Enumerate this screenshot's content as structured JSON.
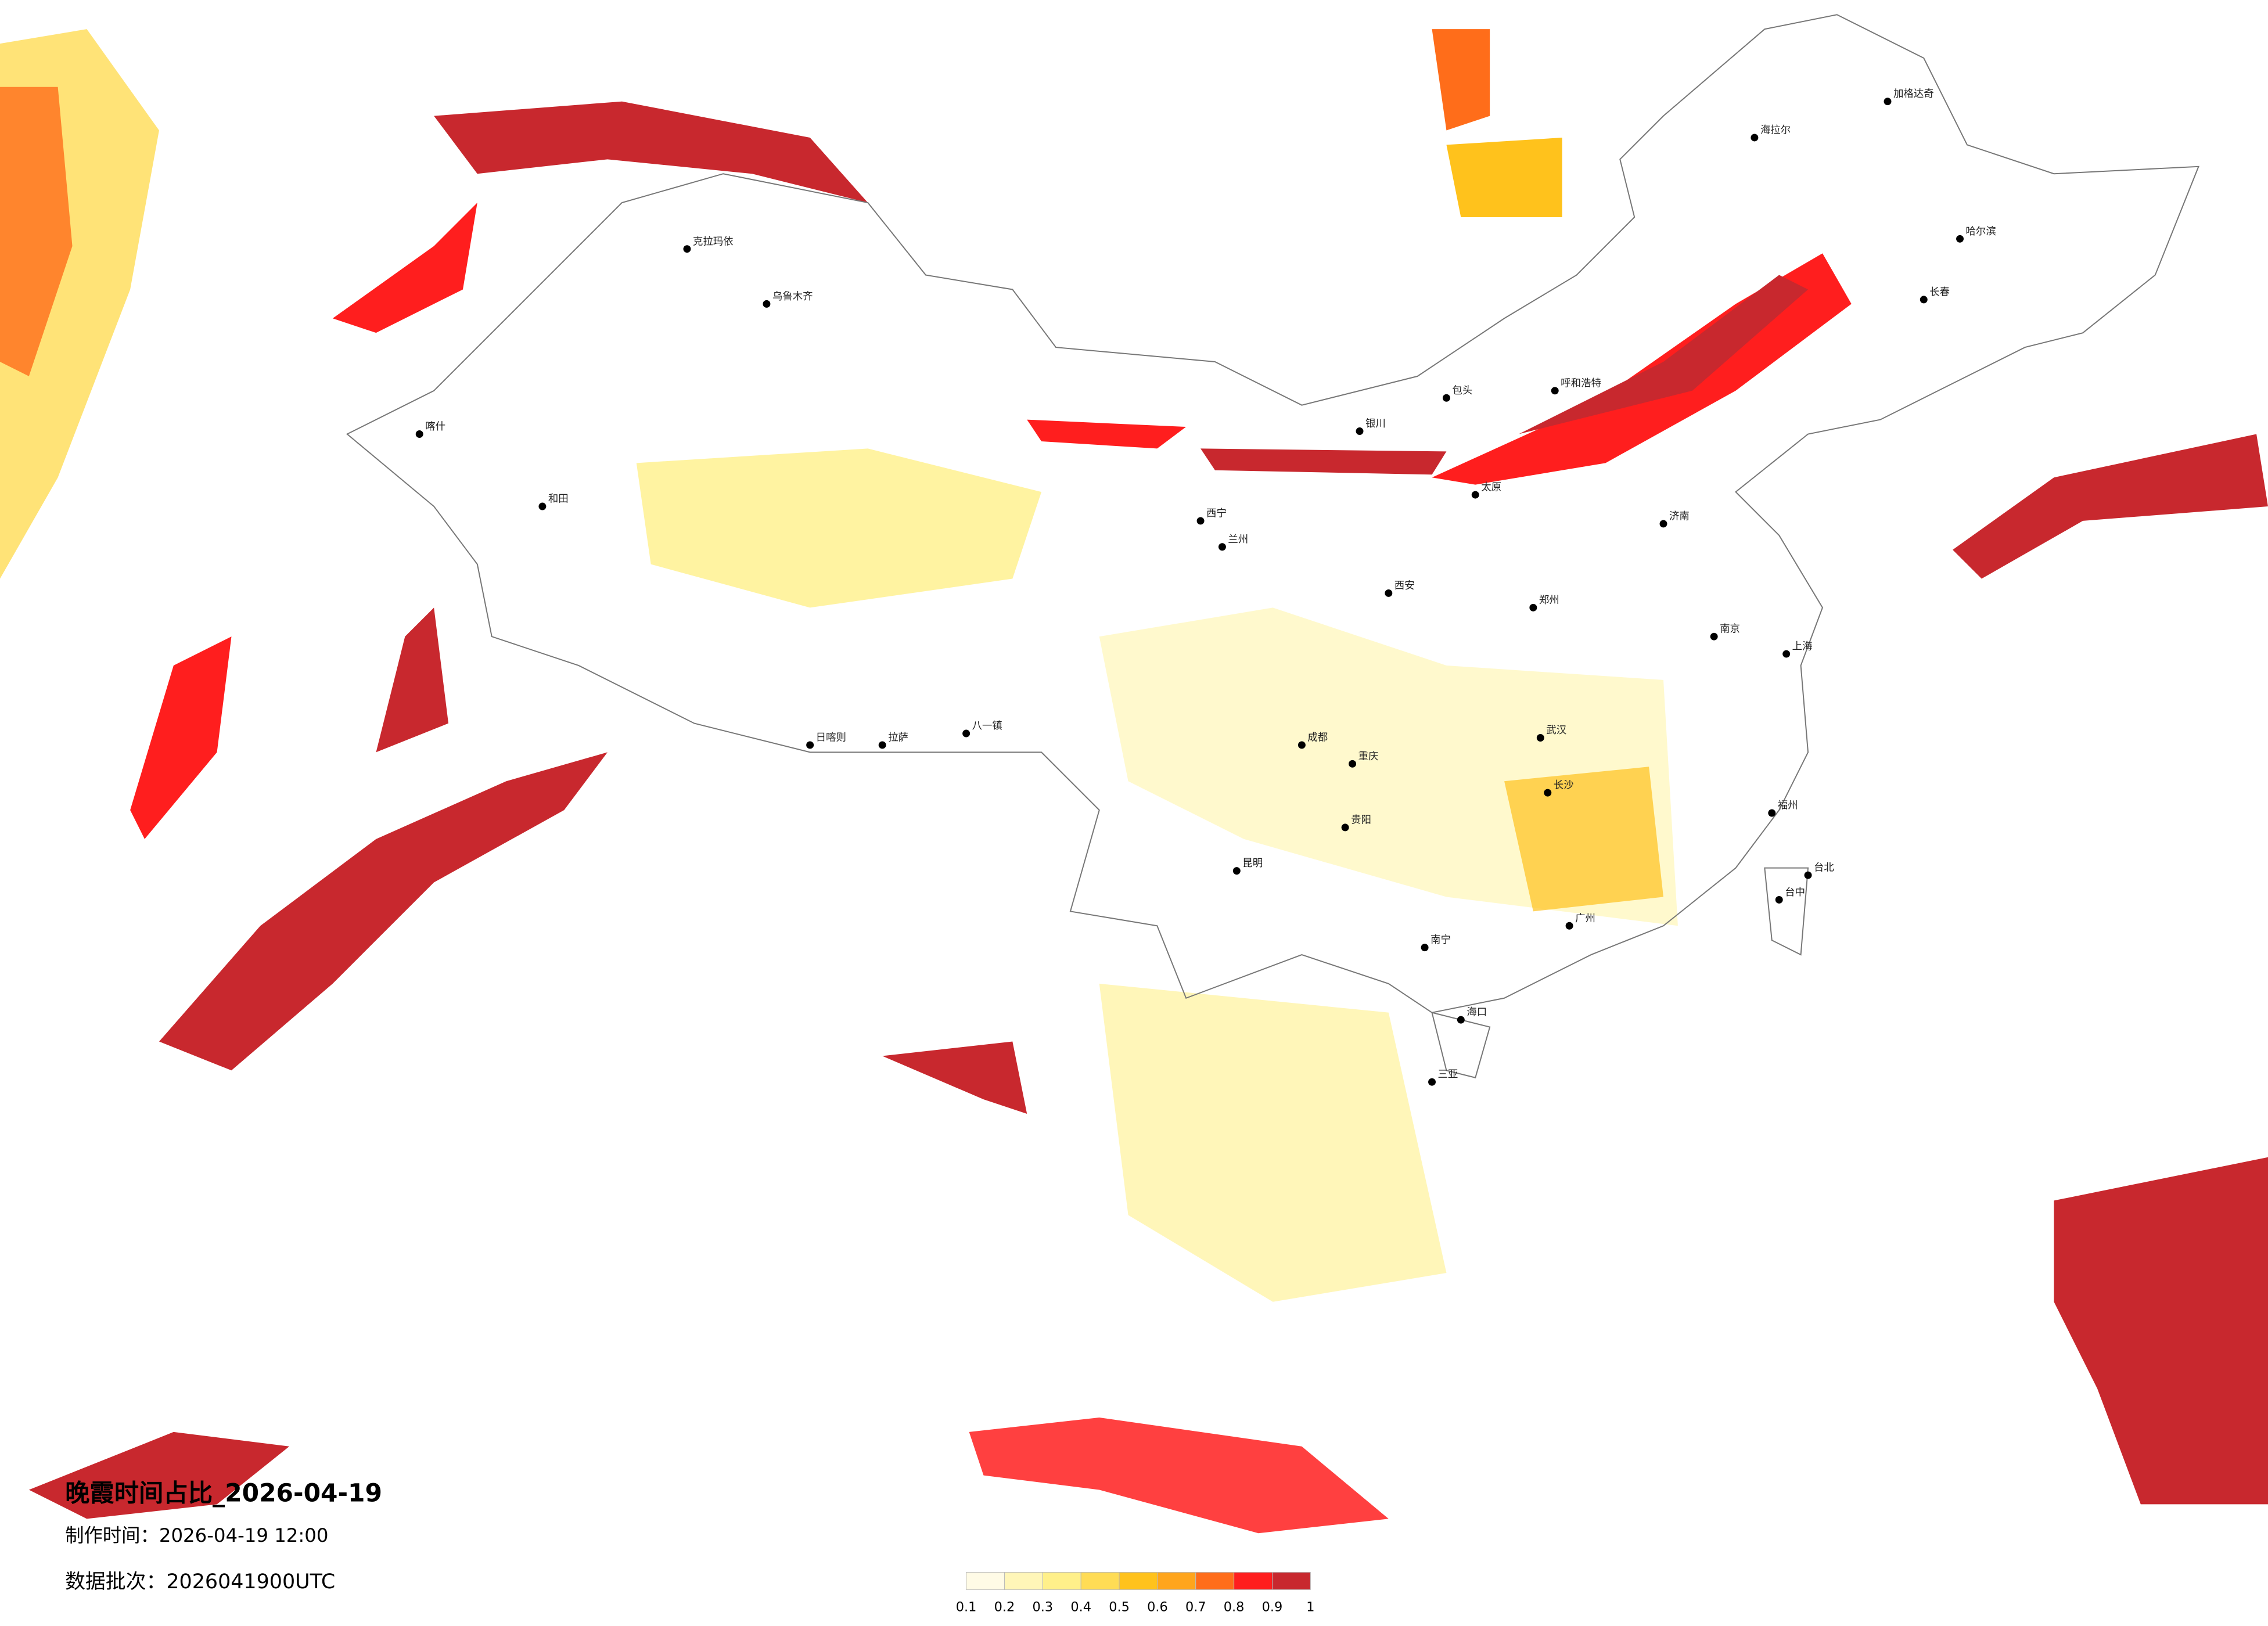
{
  "title": "晚霞时间占比_2026-04-19",
  "made_time": "制作时间：2026-04-19 12:00",
  "batch": "数据批次：2026041900UTC",
  "colorbar": {
    "ticks": [
      0.1,
      0.2,
      0.3,
      0.4,
      0.5,
      0.6,
      0.7,
      0.8,
      0.9,
      1
    ],
    "colors": [
      "#fffbe6",
      "#fff6b8",
      "#fff08a",
      "#ffdc55",
      "#ffc21c",
      "#ffa51c",
      "#ff6d1a",
      "#ff1e1e",
      "#c8282e"
    ]
  },
  "cities": [
    "海拉尔",
    "加格达奇",
    "哈尔滨",
    "长春",
    "呼和浩特",
    "包头",
    "银川",
    "西宁",
    "兰州",
    "拉萨",
    "日喀则",
    "八一镇",
    "乌鲁木齐",
    "克拉玛依",
    "喀什",
    "和田",
    "成都",
    "重庆",
    "贵阳",
    "昆明",
    "南宁",
    "广州",
    "福州",
    "台北",
    "台中",
    "上海",
    "南京",
    "武汉",
    "长沙",
    "郑州",
    "济南",
    "太原",
    "西安",
    "海口",
    "三亚"
  ]
}
